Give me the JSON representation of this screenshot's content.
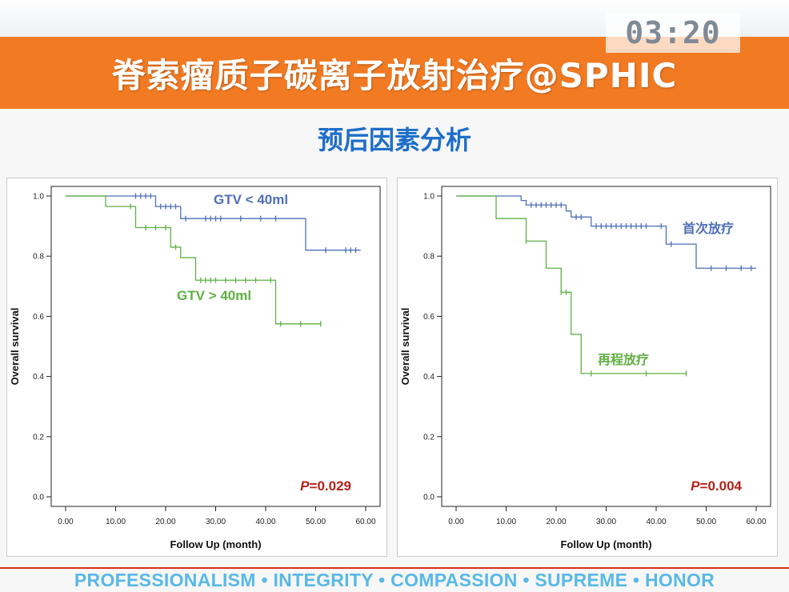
{
  "slide": {
    "title": "脊索瘤质子碳离子放射治疗@SPHIC",
    "timer": "03:20",
    "subtitle": "预后因素分析",
    "footer": "PROFESSIONALISM • INTEGRITY • COMPASSION • SUPREME • HONOR"
  },
  "colors": {
    "series_blue": "#4f6fb8",
    "series_green": "#5fb043",
    "pvalue": "#b52218",
    "accent_orange": "#f27a22"
  },
  "chart_data": [
    {
      "type": "line",
      "subtype": "kaplan-meier",
      "xlabel": "Follow Up (month)",
      "ylabel": "Overall survival",
      "xlim": [
        0,
        60
      ],
      "ylim": [
        0,
        1
      ],
      "xticks": [
        "0.00",
        "10.00",
        "20.00",
        "30.00",
        "40.00",
        "50.00",
        "60.00"
      ],
      "yticks": [
        "0.0",
        "0.2",
        "0.4",
        "0.6",
        "0.8",
        "1.0"
      ],
      "pvalue": {
        "label": "P",
        "value": "=0.029"
      },
      "series": [
        {
          "name": "GTV < 40ml",
          "color": "#4f6fb8",
          "steps": [
            [
              0,
              1.0
            ],
            [
              18,
              0.965
            ],
            [
              23,
              0.925
            ],
            [
              48,
              0.82
            ],
            [
              59,
              0.82
            ]
          ],
          "censors": [
            [
              14,
              1.0
            ],
            [
              15,
              1.0
            ],
            [
              16,
              1.0
            ],
            [
              17,
              1.0
            ],
            [
              19,
              0.965
            ],
            [
              20,
              0.965
            ],
            [
              21,
              0.965
            ],
            [
              22,
              0.965
            ],
            [
              24,
              0.925
            ],
            [
              28,
              0.925
            ],
            [
              29,
              0.925
            ],
            [
              30,
              0.925
            ],
            [
              31,
              0.925
            ],
            [
              35,
              0.925
            ],
            [
              39,
              0.925
            ],
            [
              42,
              0.925
            ],
            [
              52,
              0.82
            ],
            [
              56,
              0.82
            ],
            [
              57,
              0.82
            ],
            [
              58,
              0.82
            ]
          ]
        },
        {
          "name": "GTV > 40ml",
          "color": "#5fb043",
          "steps": [
            [
              0,
              1.0
            ],
            [
              8,
              0.965
            ],
            [
              14,
              0.895
            ],
            [
              21,
              0.83
            ],
            [
              23,
              0.795
            ],
            [
              26,
              0.72
            ],
            [
              42,
              0.575
            ],
            [
              51,
              0.575
            ]
          ],
          "censors": [
            [
              13,
              0.965
            ],
            [
              16,
              0.895
            ],
            [
              18,
              0.895
            ],
            [
              20,
              0.895
            ],
            [
              22,
              0.83
            ],
            [
              27,
              0.72
            ],
            [
              28,
              0.72
            ],
            [
              29,
              0.72
            ],
            [
              30,
              0.72
            ],
            [
              32,
              0.72
            ],
            [
              34,
              0.72
            ],
            [
              36,
              0.72
            ],
            [
              38,
              0.72
            ],
            [
              41,
              0.72
            ],
            [
              43,
              0.575
            ],
            [
              47,
              0.575
            ],
            [
              51,
              0.575
            ]
          ]
        }
      ]
    },
    {
      "type": "line",
      "subtype": "kaplan-meier",
      "xlabel": "Follow Up (month)",
      "ylabel": "Overall survival",
      "xlim": [
        0,
        60
      ],
      "ylim": [
        0,
        1
      ],
      "xticks": [
        "0.00",
        "10.00",
        "20.00",
        "30.00",
        "40.00",
        "50.00",
        "60.00"
      ],
      "yticks": [
        "0.0",
        "0.2",
        "0.4",
        "0.6",
        "0.8",
        "1.0"
      ],
      "pvalue": {
        "label": "P",
        "value": "=0.004"
      },
      "series": [
        {
          "name": "首次放疗",
          "color": "#4f6fb8",
          "steps": [
            [
              0,
              1.0
            ],
            [
              13,
              0.985
            ],
            [
              14,
              0.97
            ],
            [
              22,
              0.95
            ],
            [
              23,
              0.93
            ],
            [
              27,
              0.9
            ],
            [
              42,
              0.84
            ],
            [
              48,
              0.76
            ],
            [
              60,
              0.76
            ]
          ],
          "censors": [
            [
              15,
              0.97
            ],
            [
              16,
              0.97
            ],
            [
              17,
              0.97
            ],
            [
              18,
              0.97
            ],
            [
              19,
              0.97
            ],
            [
              20,
              0.97
            ],
            [
              21,
              0.97
            ],
            [
              24,
              0.93
            ],
            [
              25,
              0.93
            ],
            [
              28,
              0.9
            ],
            [
              29,
              0.9
            ],
            [
              30,
              0.9
            ],
            [
              31,
              0.9
            ],
            [
              32,
              0.9
            ],
            [
              33,
              0.9
            ],
            [
              34,
              0.9
            ],
            [
              35,
              0.9
            ],
            [
              36,
              0.9
            ],
            [
              37,
              0.9
            ],
            [
              38,
              0.9
            ],
            [
              41,
              0.9
            ],
            [
              43,
              0.84
            ],
            [
              51,
              0.76
            ],
            [
              54,
              0.76
            ],
            [
              57,
              0.76
            ],
            [
              59,
              0.76
            ]
          ]
        },
        {
          "name": "再程放疗",
          "color": "#5fb043",
          "steps": [
            [
              0,
              1.0
            ],
            [
              8,
              0.925
            ],
            [
              14,
              0.85
            ],
            [
              18,
              0.76
            ],
            [
              21,
              0.68
            ],
            [
              23,
              0.54
            ],
            [
              25,
              0.41
            ],
            [
              46,
              0.41
            ]
          ],
          "censors": [
            [
              14,
              0.85
            ],
            [
              21,
              0.68
            ],
            [
              22,
              0.68
            ],
            [
              27,
              0.41
            ],
            [
              38,
              0.41
            ],
            [
              46,
              0.41
            ]
          ]
        }
      ]
    }
  ]
}
